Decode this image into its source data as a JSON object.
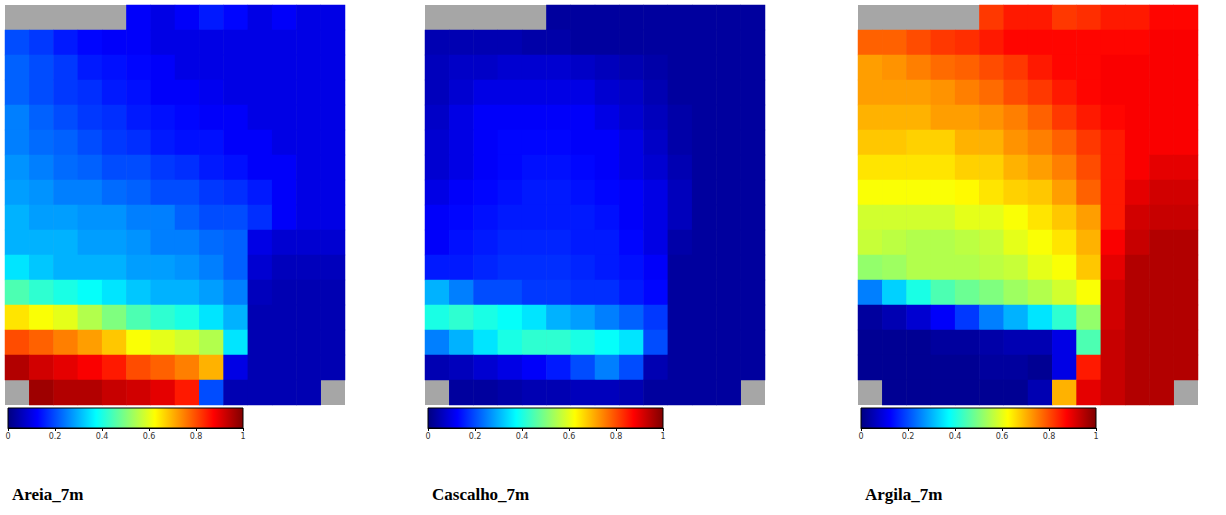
{
  "chart_data": [
    {
      "type": "heatmap",
      "title": "Areia_7m",
      "tick_labels": false,
      "colorbar": {
        "range": [
          0,
          1
        ],
        "ticks": [
          0,
          0.2,
          0.4,
          0.6,
          0.8,
          1
        ]
      },
      "cells": [
        [
          null,
          null,
          null,
          null,
          null,
          0.12,
          0.1,
          0.12,
          0.15,
          0.13,
          0.1,
          0.12,
          0.1,
          0.1
        ],
        [
          0.2,
          0.18,
          0.15,
          0.13,
          0.12,
          0.12,
          0.1,
          0.1,
          0.1,
          0.1,
          0.1,
          0.1,
          0.1,
          0.1
        ],
        [
          0.22,
          0.2,
          0.18,
          0.15,
          0.14,
          0.13,
          0.12,
          0.1,
          0.1,
          0.1,
          0.1,
          0.1,
          0.1,
          0.1
        ],
        [
          0.22,
          0.2,
          0.18,
          0.17,
          0.15,
          0.14,
          0.12,
          0.12,
          0.11,
          0.1,
          0.1,
          0.1,
          0.1,
          0.1
        ],
        [
          0.25,
          0.22,
          0.2,
          0.18,
          0.17,
          0.15,
          0.14,
          0.13,
          0.12,
          0.12,
          0.1,
          0.1,
          0.1,
          0.1
        ],
        [
          0.25,
          0.23,
          0.22,
          0.2,
          0.18,
          0.17,
          0.15,
          0.14,
          0.14,
          0.12,
          0.12,
          0.1,
          0.1,
          0.1
        ],
        [
          0.27,
          0.25,
          0.23,
          0.22,
          0.2,
          0.2,
          0.18,
          0.17,
          0.15,
          0.14,
          0.12,
          0.12,
          0.1,
          0.1
        ],
        [
          0.28,
          0.27,
          0.25,
          0.25,
          0.23,
          0.22,
          0.2,
          0.2,
          0.18,
          0.17,
          0.15,
          0.12,
          0.1,
          0.1
        ],
        [
          0.3,
          0.28,
          0.28,
          0.27,
          0.27,
          0.25,
          0.25,
          0.22,
          0.2,
          0.2,
          0.17,
          0.12,
          0.1,
          0.1
        ],
        [
          0.3,
          0.3,
          0.3,
          0.28,
          0.28,
          0.27,
          0.25,
          0.25,
          0.23,
          0.22,
          0.1,
          0.08,
          0.08,
          0.08
        ],
        [
          0.35,
          0.32,
          0.3,
          0.3,
          0.3,
          0.28,
          0.28,
          0.27,
          0.25,
          0.22,
          0.08,
          0.06,
          0.06,
          0.06
        ],
        [
          0.45,
          0.42,
          0.4,
          0.38,
          0.35,
          0.32,
          0.3,
          0.3,
          0.28,
          0.25,
          0.06,
          0.05,
          0.05,
          0.05
        ],
        [
          0.65,
          0.62,
          0.6,
          0.55,
          0.5,
          0.45,
          0.42,
          0.4,
          0.35,
          0.3,
          0.05,
          0.05,
          0.05,
          0.05
        ],
        [
          0.8,
          0.78,
          0.75,
          0.72,
          0.68,
          0.62,
          0.6,
          0.58,
          0.55,
          0.35,
          0.05,
          0.05,
          0.05,
          0.05
        ],
        [
          0.95,
          0.92,
          0.9,
          0.88,
          0.85,
          0.8,
          0.78,
          0.75,
          0.7,
          0.1,
          0.05,
          0.05,
          0.05,
          0.05
        ],
        [
          null,
          0.97,
          0.95,
          0.95,
          0.93,
          0.92,
          0.9,
          0.85,
          0.2,
          0.05,
          0.05,
          0.05,
          0.05,
          null
        ]
      ]
    },
    {
      "type": "heatmap",
      "title": "Cascalho_7m",
      "tick_labels": false,
      "colorbar": {
        "range": [
          0,
          1
        ],
        "ticks": [
          0,
          0.2,
          0.4,
          0.6,
          0.8,
          1
        ]
      },
      "cells": [
        [
          null,
          null,
          null,
          null,
          null,
          0.03,
          0.03,
          0.03,
          0.03,
          0.03,
          0.03,
          0.03,
          0.03,
          0.03
        ],
        [
          0.05,
          0.05,
          0.05,
          0.05,
          0.04,
          0.04,
          0.03,
          0.03,
          0.03,
          0.03,
          0.03,
          0.03,
          0.03,
          0.03
        ],
        [
          0.06,
          0.07,
          0.07,
          0.08,
          0.08,
          0.08,
          0.07,
          0.06,
          0.05,
          0.04,
          0.03,
          0.03,
          0.03,
          0.03
        ],
        [
          0.06,
          0.08,
          0.1,
          0.1,
          0.1,
          0.1,
          0.1,
          0.08,
          0.07,
          0.05,
          0.03,
          0.03,
          0.03,
          0.03
        ],
        [
          0.07,
          0.1,
          0.12,
          0.12,
          0.12,
          0.12,
          0.12,
          0.1,
          0.08,
          0.06,
          0.04,
          0.03,
          0.03,
          0.03
        ],
        [
          0.08,
          0.1,
          0.12,
          0.13,
          0.13,
          0.13,
          0.12,
          0.12,
          0.1,
          0.07,
          0.04,
          0.03,
          0.03,
          0.03
        ],
        [
          0.08,
          0.1,
          0.12,
          0.13,
          0.14,
          0.14,
          0.13,
          0.12,
          0.1,
          0.08,
          0.05,
          0.03,
          0.03,
          0.03
        ],
        [
          0.1,
          0.12,
          0.13,
          0.14,
          0.15,
          0.15,
          0.14,
          0.13,
          0.12,
          0.1,
          0.06,
          0.03,
          0.03,
          0.03
        ],
        [
          0.12,
          0.13,
          0.14,
          0.15,
          0.15,
          0.15,
          0.15,
          0.14,
          0.12,
          0.1,
          0.06,
          0.03,
          0.03,
          0.03
        ],
        [
          0.12,
          0.14,
          0.15,
          0.16,
          0.16,
          0.16,
          0.15,
          0.15,
          0.13,
          0.1,
          0.04,
          0.03,
          0.03,
          0.03
        ],
        [
          0.15,
          0.15,
          0.16,
          0.17,
          0.17,
          0.17,
          0.16,
          0.15,
          0.14,
          0.12,
          0.03,
          0.03,
          0.03,
          0.03
        ],
        [
          0.3,
          0.25,
          0.2,
          0.2,
          0.18,
          0.18,
          0.17,
          0.17,
          0.15,
          0.13,
          0.03,
          0.03,
          0.03,
          0.03
        ],
        [
          0.4,
          0.42,
          0.4,
          0.38,
          0.35,
          0.3,
          0.28,
          0.25,
          0.22,
          0.18,
          0.03,
          0.03,
          0.03,
          0.03
        ],
        [
          0.25,
          0.3,
          0.35,
          0.4,
          0.42,
          0.42,
          0.4,
          0.38,
          0.35,
          0.2,
          0.03,
          0.03,
          0.03,
          0.03
        ],
        [
          0.05,
          0.06,
          0.08,
          0.1,
          0.12,
          0.15,
          0.2,
          0.25,
          0.2,
          0.05,
          0.03,
          0.03,
          0.03,
          0.03
        ],
        [
          null,
          0.03,
          0.03,
          0.04,
          0.05,
          0.05,
          0.06,
          0.06,
          0.05,
          0.03,
          0.03,
          0.03,
          0.03,
          null
        ]
      ]
    },
    {
      "type": "heatmap",
      "title": "Argila_7m",
      "tick_labels": false,
      "colorbar": {
        "range": [
          0,
          1
        ],
        "ticks": [
          0,
          0.2,
          0.4,
          0.6,
          0.8,
          1
        ]
      },
      "cells": [
        [
          null,
          null,
          null,
          null,
          null,
          0.82,
          0.85,
          0.85,
          0.82,
          0.83,
          0.85,
          0.85,
          0.87,
          0.87
        ],
        [
          0.78,
          0.78,
          0.8,
          0.82,
          0.83,
          0.85,
          0.87,
          0.87,
          0.87,
          0.87,
          0.87,
          0.87,
          0.88,
          0.88
        ],
        [
          0.72,
          0.73,
          0.75,
          0.77,
          0.78,
          0.8,
          0.82,
          0.85,
          0.87,
          0.87,
          0.88,
          0.88,
          0.88,
          0.88
        ],
        [
          0.72,
          0.72,
          0.72,
          0.73,
          0.75,
          0.77,
          0.8,
          0.82,
          0.85,
          0.87,
          0.88,
          0.88,
          0.88,
          0.88
        ],
        [
          0.7,
          0.7,
          0.7,
          0.72,
          0.72,
          0.73,
          0.75,
          0.78,
          0.82,
          0.85,
          0.87,
          0.88,
          0.88,
          0.88
        ],
        [
          0.68,
          0.68,
          0.67,
          0.67,
          0.7,
          0.7,
          0.73,
          0.75,
          0.78,
          0.82,
          0.85,
          0.88,
          0.88,
          0.88
        ],
        [
          0.65,
          0.65,
          0.65,
          0.65,
          0.67,
          0.67,
          0.7,
          0.72,
          0.75,
          0.8,
          0.85,
          0.88,
          0.9,
          0.9
        ],
        [
          0.62,
          0.62,
          0.62,
          0.62,
          0.63,
          0.65,
          0.67,
          0.68,
          0.72,
          0.78,
          0.85,
          0.9,
          0.92,
          0.92
        ],
        [
          0.58,
          0.58,
          0.58,
          0.58,
          0.6,
          0.6,
          0.62,
          0.65,
          0.68,
          0.72,
          0.85,
          0.92,
          0.93,
          0.93
        ],
        [
          0.57,
          0.56,
          0.55,
          0.55,
          0.56,
          0.57,
          0.6,
          0.62,
          0.65,
          0.7,
          0.88,
          0.93,
          0.95,
          0.95
        ],
        [
          0.52,
          0.53,
          0.55,
          0.55,
          0.55,
          0.56,
          0.57,
          0.6,
          0.62,
          0.68,
          0.9,
          0.95,
          0.95,
          0.95
        ],
        [
          0.25,
          0.33,
          0.4,
          0.45,
          0.48,
          0.5,
          0.53,
          0.55,
          0.58,
          0.62,
          0.92,
          0.95,
          0.95,
          0.95
        ],
        [
          0.03,
          0.05,
          0.08,
          0.12,
          0.18,
          0.25,
          0.3,
          0.35,
          0.42,
          0.52,
          0.92,
          0.95,
          0.95,
          0.95
        ],
        [
          0.02,
          0.02,
          0.02,
          0.03,
          0.03,
          0.04,
          0.05,
          0.05,
          0.1,
          0.45,
          0.93,
          0.95,
          0.95,
          0.95
        ],
        [
          0.02,
          0.02,
          0.02,
          0.02,
          0.02,
          0.03,
          0.03,
          0.02,
          0.1,
          0.85,
          0.93,
          0.95,
          0.95,
          0.95
        ],
        [
          null,
          0.02,
          0.02,
          0.02,
          0.02,
          0.02,
          0.02,
          0.05,
          0.7,
          0.9,
          0.93,
          0.95,
          0.95,
          null
        ]
      ]
    }
  ]
}
